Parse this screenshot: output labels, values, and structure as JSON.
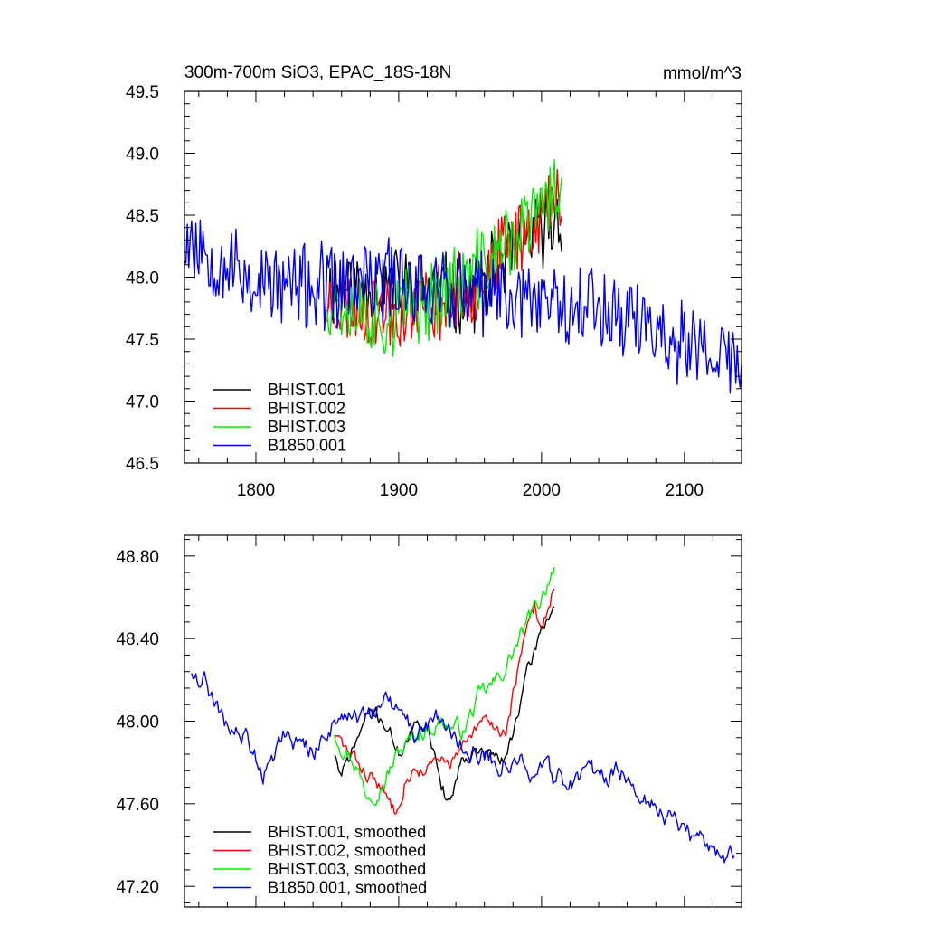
{
  "chart_data": [
    {
      "type": "line",
      "title": "300m-700m SiO3, EPAC_18S-18N",
      "units": "mmol/m^3",
      "xlim": [
        1750,
        2140
      ],
      "ylim": [
        46.5,
        49.5
      ],
      "xticks": [
        1800,
        1900,
        2000,
        2100
      ],
      "xtick_labels": [
        "1800",
        "1900",
        "2000",
        "2100"
      ],
      "yticks": [
        46.5,
        47.0,
        47.5,
        48.0,
        48.5,
        49.0,
        49.5
      ],
      "ytick_labels": [
        "46.5",
        "47.0",
        "47.5",
        "48.0",
        "48.5",
        "49.0",
        "49.5"
      ],
      "legend_position": "bottom-left",
      "series": [
        {
          "name": "BHIST.001",
          "color": "#000000",
          "x_start": 1850,
          "x_end": 2014,
          "level": [
            [
              1850,
              47.9
            ],
            [
              1900,
              47.95
            ],
            [
              1950,
              47.85
            ],
            [
              1980,
              48.2
            ],
            [
              2014,
              48.5
            ]
          ],
          "amplitude": 0.28,
          "seed": 11
        },
        {
          "name": "BHIST.002",
          "color": "#ff0000",
          "x_start": 1850,
          "x_end": 2014,
          "level": [
            [
              1850,
              47.8
            ],
            [
              1900,
              47.7
            ],
            [
              1950,
              47.9
            ],
            [
              1980,
              48.3
            ],
            [
              2014,
              48.65
            ]
          ],
          "amplitude": 0.28,
          "seed": 23
        },
        {
          "name": "BHIST.003",
          "color": "#00ee00",
          "x_start": 1850,
          "x_end": 2014,
          "level": [
            [
              1850,
              47.85
            ],
            [
              1890,
              47.65
            ],
            [
              1950,
              48.0
            ],
            [
              1980,
              48.3
            ],
            [
              2014,
              48.75
            ]
          ],
          "amplitude": 0.3,
          "seed": 37
        },
        {
          "name": "B1850.001",
          "color": "#0000ee",
          "x_start": 1750,
          "x_end": 2140,
          "level": [
            [
              1750,
              48.35
            ],
            [
              1800,
              47.95
            ],
            [
              1850,
              47.9
            ],
            [
              1900,
              48.0
            ],
            [
              1950,
              47.85
            ],
            [
              2000,
              47.85
            ],
            [
              2050,
              47.75
            ],
            [
              2100,
              47.45
            ],
            [
              2140,
              47.3
            ]
          ],
          "amplitude": 0.32,
          "seed": 53
        }
      ]
    },
    {
      "type": "line",
      "title": "",
      "xlim": [
        1750,
        2140
      ],
      "ylim": [
        47.1,
        48.9
      ],
      "xticks": [
        1800,
        1900,
        2000,
        2100
      ],
      "yticks": [
        47.2,
        47.6,
        48.0,
        48.4,
        48.8
      ],
      "ytick_labels": [
        "47.20",
        "47.60",
        "48.00",
        "48.40",
        "48.80"
      ],
      "legend_position": "bottom-left",
      "series": [
        {
          "name": "BHIST.001, smoothed",
          "color": "#000000",
          "x_start": 1855,
          "x_end": 2009,
          "level": [
            [
              1855,
              47.85
            ],
            [
              1860,
              47.72
            ],
            [
              1870,
              47.9
            ],
            [
              1880,
              48.05
            ],
            [
              1890,
              48.0
            ],
            [
              1900,
              47.85
            ],
            [
              1910,
              47.95
            ],
            [
              1920,
              48.0
            ],
            [
              1930,
              47.7
            ],
            [
              1935,
              47.6
            ],
            [
              1945,
              47.85
            ],
            [
              1960,
              47.85
            ],
            [
              1975,
              47.8
            ],
            [
              1985,
              48.1
            ],
            [
              2000,
              48.45
            ],
            [
              2009,
              48.57
            ]
          ],
          "amplitude": 0.03,
          "seed": 71
        },
        {
          "name": "BHIST.002, smoothed",
          "color": "#ff0000",
          "x_start": 1855,
          "x_end": 2009,
          "level": [
            [
              1855,
              47.93
            ],
            [
              1870,
              47.8
            ],
            [
              1885,
              47.7
            ],
            [
              1897,
              47.57
            ],
            [
              1905,
              47.75
            ],
            [
              1920,
              47.78
            ],
            [
              1935,
              47.8
            ],
            [
              1950,
              47.9
            ],
            [
              1960,
              48.0
            ],
            [
              1975,
              47.95
            ],
            [
              1985,
              48.3
            ],
            [
              1995,
              48.55
            ],
            [
              2000,
              48.45
            ],
            [
              2009,
              48.67
            ]
          ],
          "amplitude": 0.03,
          "seed": 83
        },
        {
          "name": "BHIST.003, smoothed",
          "color": "#00ee00",
          "x_start": 1855,
          "x_end": 2009,
          "level": [
            [
              1855,
              47.95
            ],
            [
              1870,
              47.8
            ],
            [
              1877,
              47.65
            ],
            [
              1890,
              47.72
            ],
            [
              1900,
              47.85
            ],
            [
              1915,
              47.95
            ],
            [
              1930,
              48.0
            ],
            [
              1945,
              47.95
            ],
            [
              1955,
              48.1
            ],
            [
              1970,
              48.2
            ],
            [
              1985,
              48.4
            ],
            [
              2000,
              48.6
            ],
            [
              2009,
              48.77
            ]
          ],
          "amplitude": 0.035,
          "seed": 97
        },
        {
          "name": "B1850.001, smoothed",
          "color": "#0000ee",
          "x_start": 1755,
          "x_end": 2135,
          "level": [
            [
              1755,
              48.25
            ],
            [
              1765,
              48.2
            ],
            [
              1775,
              48.0
            ],
            [
              1795,
              47.9
            ],
            [
              1805,
              47.75
            ],
            [
              1820,
              47.95
            ],
            [
              1840,
              47.85
            ],
            [
              1860,
              48.05
            ],
            [
              1880,
              48.0
            ],
            [
              1890,
              48.1
            ],
            [
              1910,
              47.95
            ],
            [
              1930,
              48.0
            ],
            [
              1950,
              47.85
            ],
            [
              1970,
              47.8
            ],
            [
              1990,
              47.8
            ],
            [
              2010,
              47.7
            ],
            [
              2050,
              47.75
            ],
            [
              2060,
              47.75
            ],
            [
              2080,
              47.6
            ],
            [
              2100,
              47.45
            ],
            [
              2120,
              47.4
            ],
            [
              2135,
              47.32
            ]
          ],
          "amplitude": 0.04,
          "seed": 109
        }
      ]
    }
  ]
}
